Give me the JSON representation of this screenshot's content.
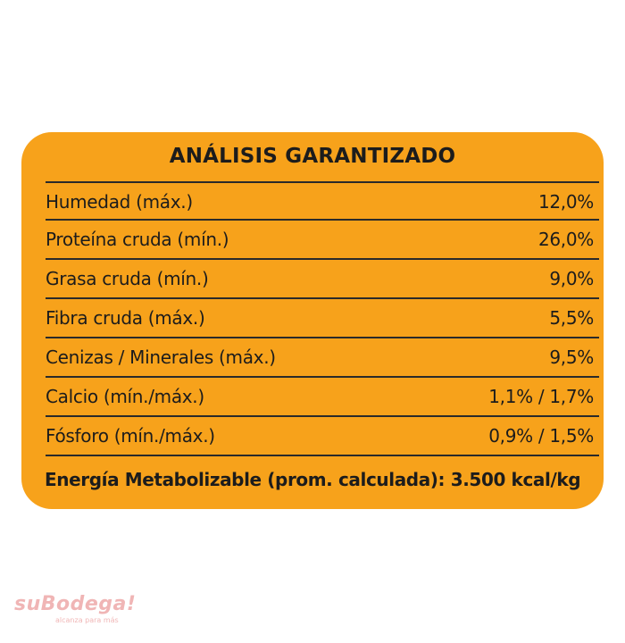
{
  "label": {
    "title": "ANÁLISIS GARANTIZADO",
    "rows": [
      {
        "name": "Humedad (máx.)",
        "value": "12,0%"
      },
      {
        "name": "Proteína cruda (mín.)",
        "value": "26,0%"
      },
      {
        "name": "Grasa cruda (mín.)",
        "value": "9,0%"
      },
      {
        "name": "Fibra cruda (máx.)",
        "value": "5,5%"
      },
      {
        "name": "Cenizas / Minerales (máx.)",
        "value": "9,5%"
      },
      {
        "name": "Calcio (mín./máx.)",
        "value": "1,1% / 1,7%"
      },
      {
        "name": "Fósforo (mín./máx.)",
        "value": "0,9% / 1,5%"
      }
    ],
    "energy": "Energía Metabolizable (prom. calculada): 3.500 kcal/kg",
    "background_color": "#f7a21b"
  },
  "watermark": {
    "brand": "suBodega!",
    "tagline": "alcanza para más"
  }
}
